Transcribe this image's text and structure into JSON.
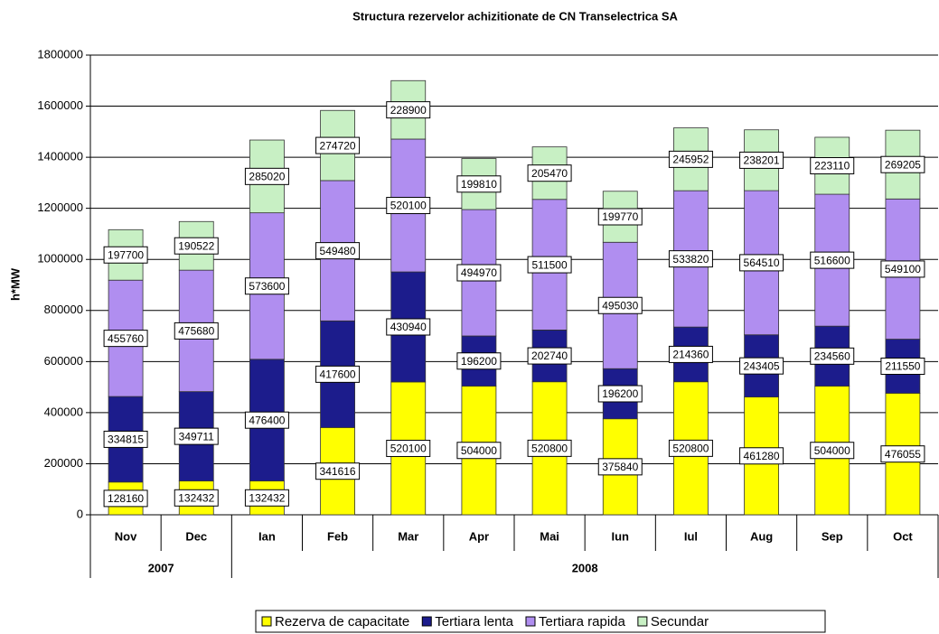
{
  "chart_data": {
    "type": "stacked_bar",
    "title": "Structura rezervelor achizitionate de CN Transelectrica SA",
    "y_label": "h*MW",
    "categories": [
      "Nov",
      "Dec",
      "Ian",
      "Feb",
      "Mar",
      "Apr",
      "Mai",
      "Iun",
      "Iul",
      "Aug",
      "Sep",
      "Oct"
    ],
    "category_years": [
      "2007",
      "2007",
      "2008",
      "2008",
      "2008",
      "2008",
      "2008",
      "2008",
      "2008",
      "2008",
      "2008",
      "2008"
    ],
    "series": [
      {
        "name": "Rezerva de capacitate",
        "color": "#ffff00",
        "values": [
          128160,
          132432,
          132432,
          341616,
          520100,
          504000,
          520800,
          375840,
          520800,
          461280,
          504000,
          476055
        ]
      },
      {
        "name": "Tertiara lenta",
        "color": "#1c1c8c",
        "values": [
          334815,
          349711,
          476400,
          417600,
          430940,
          196200,
          202740,
          196200,
          214360,
          243405,
          234560,
          211550
        ]
      },
      {
        "name": "Tertiara rapida",
        "color": "#b08ef0",
        "values": [
          455760,
          475680,
          573600,
          549480,
          520100,
          494970,
          511500,
          495030,
          533820,
          564510,
          516600,
          549100
        ]
      },
      {
        "name": "Secundar",
        "color": "#c8f0c4",
        "values": [
          197700,
          190522,
          285020,
          274720,
          228900,
          199810,
          205470,
          199770,
          245952,
          238201,
          223110,
          269205
        ]
      }
    ],
    "ylim": [
      0,
      1800000
    ],
    "yticks": [
      0,
      200000,
      400000,
      600000,
      800000,
      1000000,
      1200000,
      1400000,
      1600000,
      1800000
    ],
    "grid": true,
    "legend": "bottom"
  }
}
